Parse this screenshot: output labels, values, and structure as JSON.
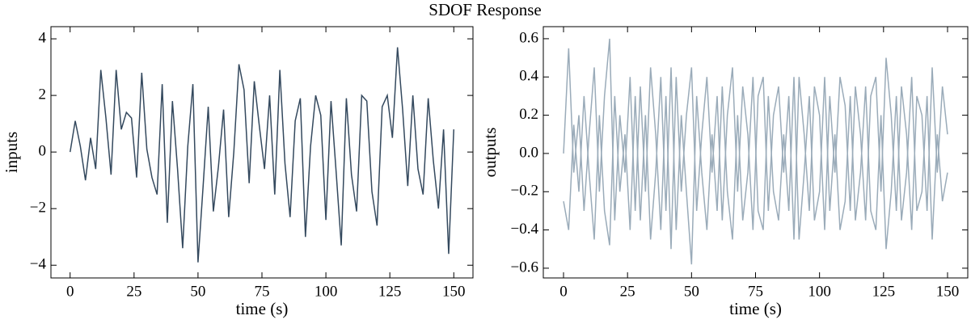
{
  "title": "SDOF Response",
  "chart_data": [
    {
      "type": "line",
      "xlabel": "time (s)",
      "ylabel": "inputs",
      "x": [
        0,
        2,
        4,
        6,
        8,
        10,
        12,
        14,
        16,
        18,
        20,
        22,
        24,
        26,
        28,
        30,
        32,
        34,
        36,
        38,
        40,
        42,
        44,
        46,
        48,
        50,
        52,
        54,
        56,
        58,
        60,
        62,
        64,
        66,
        68,
        70,
        72,
        74,
        76,
        78,
        80,
        82,
        84,
        86,
        88,
        90,
        92,
        94,
        96,
        98,
        100,
        102,
        104,
        106,
        108,
        110,
        112,
        114,
        116,
        118,
        120,
        122,
        124,
        126,
        128,
        130,
        132,
        134,
        136,
        138,
        140,
        142,
        144,
        146,
        148,
        150
      ],
      "series": [
        {
          "color": "#34495e",
          "values": [
            0,
            1.1,
            0.2,
            -1.0,
            0.5,
            -0.6,
            2.9,
            1.2,
            -0.8,
            2.9,
            0.8,
            1.4,
            1.2,
            -0.9,
            2.8,
            0.1,
            -0.9,
            -1.5,
            2.4,
            -2.5,
            1.8,
            -0.6,
            -3.4,
            0.2,
            2.4,
            -3.9,
            -1.2,
            1.6,
            -2.1,
            -0.5,
            1.5,
            -2.3,
            0.0,
            3.1,
            2.2,
            -1.1,
            2.5,
            0.9,
            -0.6,
            2.0,
            -1.5,
            2.9,
            -0.4,
            -2.3,
            1.1,
            1.9,
            -3.0,
            0.2,
            2.0,
            1.3,
            -2.4,
            1.8,
            -0.7,
            -3.3,
            1.9,
            -0.8,
            -2.1,
            2.0,
            1.8,
            -1.4,
            -2.6,
            1.6,
            2.0,
            0.5,
            3.7,
            1.5,
            -1.2,
            2.0,
            -0.6,
            -1.5,
            1.9,
            -0.3,
            -2.0,
            0.8,
            -3.6,
            0.8
          ]
        }
      ],
      "xlim": [
        -7.5,
        157.5
      ],
      "ylim": [
        -4.45,
        4.43
      ],
      "xticks": [
        0,
        25,
        50,
        75,
        100,
        125,
        150
      ],
      "yticks": [
        {
          "value": -4,
          "label": "−4"
        },
        {
          "value": -2,
          "label": "−2"
        },
        0,
        2,
        4
      ]
    },
    {
      "type": "line",
      "xlabel": "time (s)",
      "ylabel": "outputs",
      "x": [
        0,
        2,
        4,
        6,
        8,
        10,
        12,
        14,
        16,
        18,
        20,
        22,
        24,
        26,
        28,
        30,
        32,
        34,
        36,
        38,
        40,
        42,
        44,
        46,
        48,
        50,
        52,
        54,
        56,
        58,
        60,
        62,
        64,
        66,
        68,
        70,
        72,
        74,
        76,
        78,
        80,
        82,
        84,
        86,
        88,
        90,
        92,
        94,
        96,
        98,
        100,
        102,
        104,
        106,
        108,
        110,
        112,
        114,
        116,
        118,
        120,
        122,
        124,
        126,
        128,
        130,
        132,
        134,
        136,
        138,
        140,
        142,
        144,
        146,
        148,
        150
      ],
      "series": [
        {
          "color": "#9aabb9",
          "values": [
            0,
            0.55,
            -0.1,
            0.2,
            -0.3,
            0.1,
            0.45,
            -0.2,
            0.3,
            0.6,
            -0.35,
            0.2,
            -0.1,
            0.4,
            -0.3,
            0.35,
            -0.2,
            0.45,
            0.1,
            -0.4,
            0.3,
            -0.5,
            0.4,
            -0.2,
            0.2,
            0.45,
            -0.3,
            0.1,
            0.4,
            -0.1,
            0.3,
            -0.35,
            0.2,
            0.45,
            -0.2,
            0.35,
            0.1,
            -0.4,
            0.3,
            0.4,
            -0.3,
            0.2,
            0.35,
            -0.1,
            0.3,
            -0.45,
            0.4,
            0.1,
            -0.3,
            0.35,
            0.2,
            -0.4,
            0.3,
            -0.1,
            0.4,
            0.25,
            -0.3,
            0.35,
            0.1,
            -0.35,
            0.3,
            0.4,
            -0.2,
            0.5,
            0.2,
            -0.3,
            0.35,
            0.1,
            -0.4,
            0.3,
            0.2,
            -0.3,
            0.45,
            -0.1,
            0.35,
            0.1
          ]
        },
        {
          "color": "#9aabb9",
          "values": [
            -0.25,
            -0.4,
            0.15,
            -0.2,
            0.3,
            -0.1,
            -0.45,
            0.2,
            -0.3,
            -0.48,
            0.3,
            -0.2,
            0.1,
            -0.4,
            0.3,
            -0.35,
            0.2,
            -0.45,
            -0.1,
            0.4,
            -0.3,
            0.45,
            -0.4,
            0.2,
            -0.2,
            -0.58,
            0.3,
            -0.1,
            -0.4,
            0.1,
            -0.3,
            0.35,
            -0.2,
            -0.45,
            0.2,
            -0.35,
            -0.1,
            0.4,
            -0.3,
            -0.4,
            0.3,
            -0.2,
            -0.35,
            0.1,
            -0.3,
            0.4,
            -0.45,
            -0.1,
            0.3,
            -0.35,
            -0.2,
            0.4,
            -0.3,
            0.1,
            -0.4,
            -0.25,
            0.3,
            -0.35,
            -0.1,
            0.35,
            -0.3,
            -0.4,
            0.2,
            -0.5,
            -0.2,
            0.3,
            -0.35,
            -0.1,
            0.4,
            -0.3,
            -0.2,
            0.3,
            -0.45,
            0.1,
            -0.25,
            -0.1
          ]
        }
      ],
      "xlim": [
        -7.9,
        157.9
      ],
      "ylim": [
        -0.651,
        0.663
      ],
      "xticks": [
        0,
        25,
        50,
        75,
        100,
        125,
        150
      ],
      "yticks": [
        {
          "value": -0.6,
          "label": "−0.6"
        },
        {
          "value": -0.4,
          "label": "−0.4"
        },
        {
          "value": -0.2,
          "label": "−0.2"
        },
        {
          "value": 0,
          "label": "0.0"
        },
        0.2,
        0.4,
        0.6
      ]
    }
  ]
}
